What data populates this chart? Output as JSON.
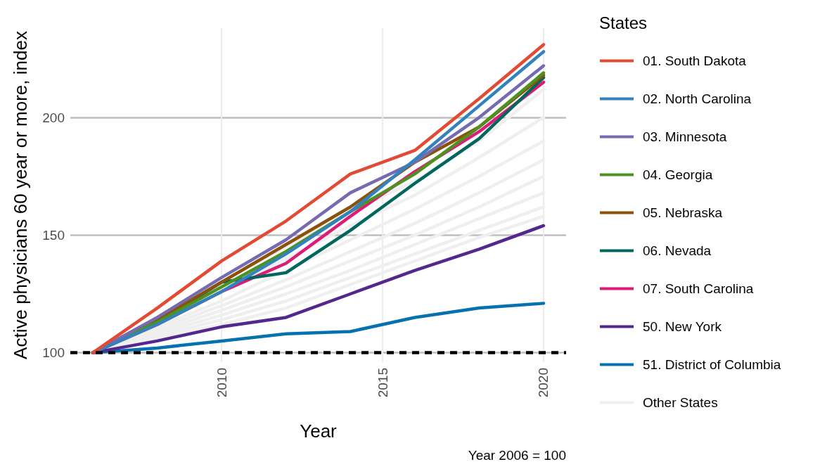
{
  "chart_data": {
    "type": "line",
    "xlabel": "Year",
    "ylabel": "Active physicians 60 year or more, index",
    "legend_title": "States",
    "legend": "right",
    "grid": true,
    "marker": "none",
    "line_style": "solid",
    "x": [
      2006,
      2008,
      2010,
      2012,
      2014,
      2016,
      2018,
      2020
    ],
    "xlim": [
      2005.3,
      2020.7
    ],
    "xticks": [
      2010,
      2015,
      2020
    ],
    "ylim": [
      96,
      238
    ],
    "yticks": [
      100,
      150,
      200
    ],
    "ref_lines": [
      {
        "axis": "y",
        "value": 100,
        "color": "#000000",
        "line_style": "dashed"
      }
    ],
    "annotations": [
      "Year 2006 = 100"
    ],
    "series": [
      {
        "name": "01. South Dakota",
        "color": "#e34a33",
        "values": [
          100,
          119,
          139,
          156,
          176,
          186,
          208,
          231
        ]
      },
      {
        "name": "02. North Carolina",
        "color": "#3182bd",
        "values": [
          100,
          112,
          126,
          142,
          160,
          182,
          205,
          228
        ]
      },
      {
        "name": "03. Minnesota",
        "color": "#756bb1",
        "values": [
          100,
          115,
          132,
          148,
          168,
          181,
          200,
          222
        ]
      },
      {
        "name": "04. Georgia",
        "color": "#4d9221",
        "values": [
          100,
          113,
          128,
          143,
          160,
          176,
          196,
          219
        ]
      },
      {
        "name": "05. Nebraska",
        "color": "#8c510a",
        "values": [
          100,
          114,
          130,
          146,
          162,
          181,
          196,
          218
        ]
      },
      {
        "name": "06. Nevada",
        "color": "#01665e",
        "values": [
          100,
          113,
          130,
          134,
          152,
          172,
          191,
          217
        ]
      },
      {
        "name": "07. South Carolina",
        "color": "#dd1c77",
        "values": [
          100,
          112,
          126,
          138,
          158,
          177,
          194,
          215
        ]
      },
      {
        "name": "50. New York",
        "color": "#54278f",
        "values": [
          100,
          105,
          111,
          115,
          125,
          135,
          144,
          154
        ]
      },
      {
        "name": "51. District of Columbia",
        "color": "#0571b0",
        "values": [
          100,
          102,
          105,
          108,
          109,
          115,
          119,
          121
        ]
      },
      {
        "name": "Other States",
        "color": "#efefef",
        "values": [
          100,
          115,
          130,
          145,
          160,
          173,
          190,
          212
        ]
      },
      {
        "color": "#efefef",
        "values": [
          100,
          113,
          126,
          140,
          154,
          167,
          183,
          200
        ]
      },
      {
        "color": "#efefef",
        "values": [
          100,
          111,
          122,
          135,
          148,
          161,
          175,
          190
        ]
      },
      {
        "color": "#efefef",
        "values": [
          100,
          110,
          120,
          131,
          143,
          155,
          168,
          182
        ]
      },
      {
        "color": "#efefef",
        "values": [
          100,
          109,
          118,
          128,
          139,
          150,
          162,
          175
        ]
      },
      {
        "color": "#efefef",
        "values": [
          100,
          108,
          116,
          125,
          135,
          146,
          157,
          168
        ]
      },
      {
        "color": "#efefef",
        "values": [
          100,
          107,
          114,
          122,
          132,
          142,
          152,
          162
        ]
      },
      {
        "color": "#efefef",
        "values": [
          100,
          106,
          112,
          119,
          129,
          139,
          149,
          158
        ]
      }
    ]
  }
}
